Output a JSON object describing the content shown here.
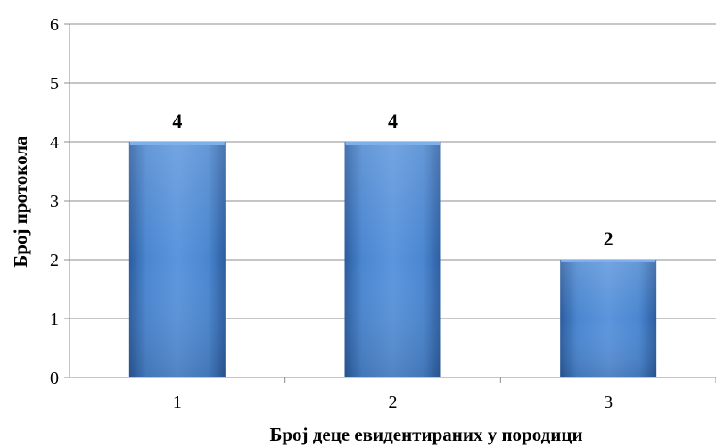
{
  "chart_data": {
    "type": "bar",
    "title": "",
    "xlabel": "Број деце евидентираних у породици",
    "ylabel": "Број протокола",
    "categories": [
      "1",
      "2",
      "3"
    ],
    "values": [
      4,
      4,
      2
    ],
    "data_labels": [
      "4",
      "4",
      "2"
    ],
    "ylim": [
      0,
      6
    ],
    "yticks": [
      "0",
      "1",
      "2",
      "3",
      "4",
      "5",
      "6"
    ],
    "grid": true,
    "legend": "none",
    "bar_color": "#4f88cf",
    "bar_color_dark": "#2a5a9e",
    "grid_color": "#8c8c8c"
  }
}
